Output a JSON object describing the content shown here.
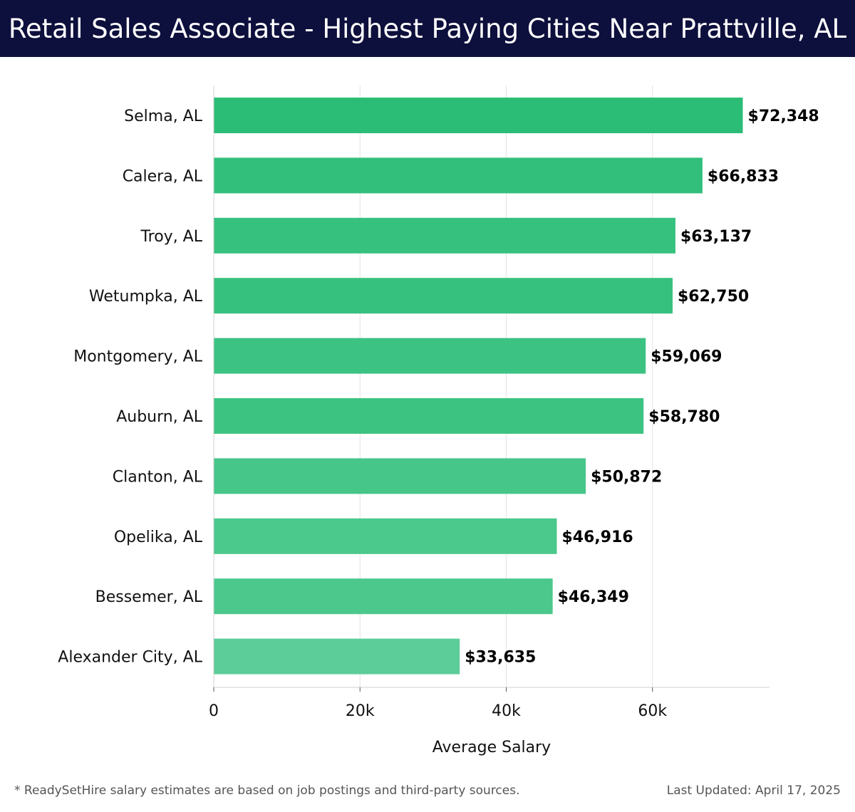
{
  "header": {
    "title": "Retail Sales Associate - Highest Paying Cities Near Prattville, AL",
    "background": "#0d0f3c",
    "text_color": "#ffffff"
  },
  "chart_data": {
    "type": "bar",
    "orientation": "horizontal",
    "title": "Retail Sales Associate - Highest Paying Cities Near Prattville, AL",
    "categories": [
      "Selma, AL",
      "Calera, AL",
      "Troy, AL",
      "Wetumpka, AL",
      "Montgomery, AL",
      "Auburn, AL",
      "Clanton, AL",
      "Opelika, AL",
      "Bessemer, AL",
      "Alexander City, AL"
    ],
    "values": [
      72348,
      66833,
      63137,
      62750,
      59069,
      58780,
      50872,
      46916,
      46349,
      33635
    ],
    "value_labels": [
      "$72,348",
      "$66,833",
      "$63,137",
      "$62,750",
      "$59,069",
      "$58,780",
      "$50,872",
      "$46,916",
      "$46,349",
      "$33,635"
    ],
    "xlabel": "Average Salary",
    "ylabel": "",
    "xlim": [
      0,
      76000
    ],
    "x_ticks": [
      0,
      20000,
      40000,
      60000
    ],
    "x_tick_labels": [
      "0",
      "20k",
      "40k",
      "60k"
    ],
    "grid": true,
    "bar_color_max": "#2bbd76",
    "bar_color_min": "#5ccd98"
  },
  "footer": {
    "note": "* ReadySetHire salary estimates are based on job postings and third-party sources.",
    "updated": "Last Updated: April 17, 2025"
  }
}
